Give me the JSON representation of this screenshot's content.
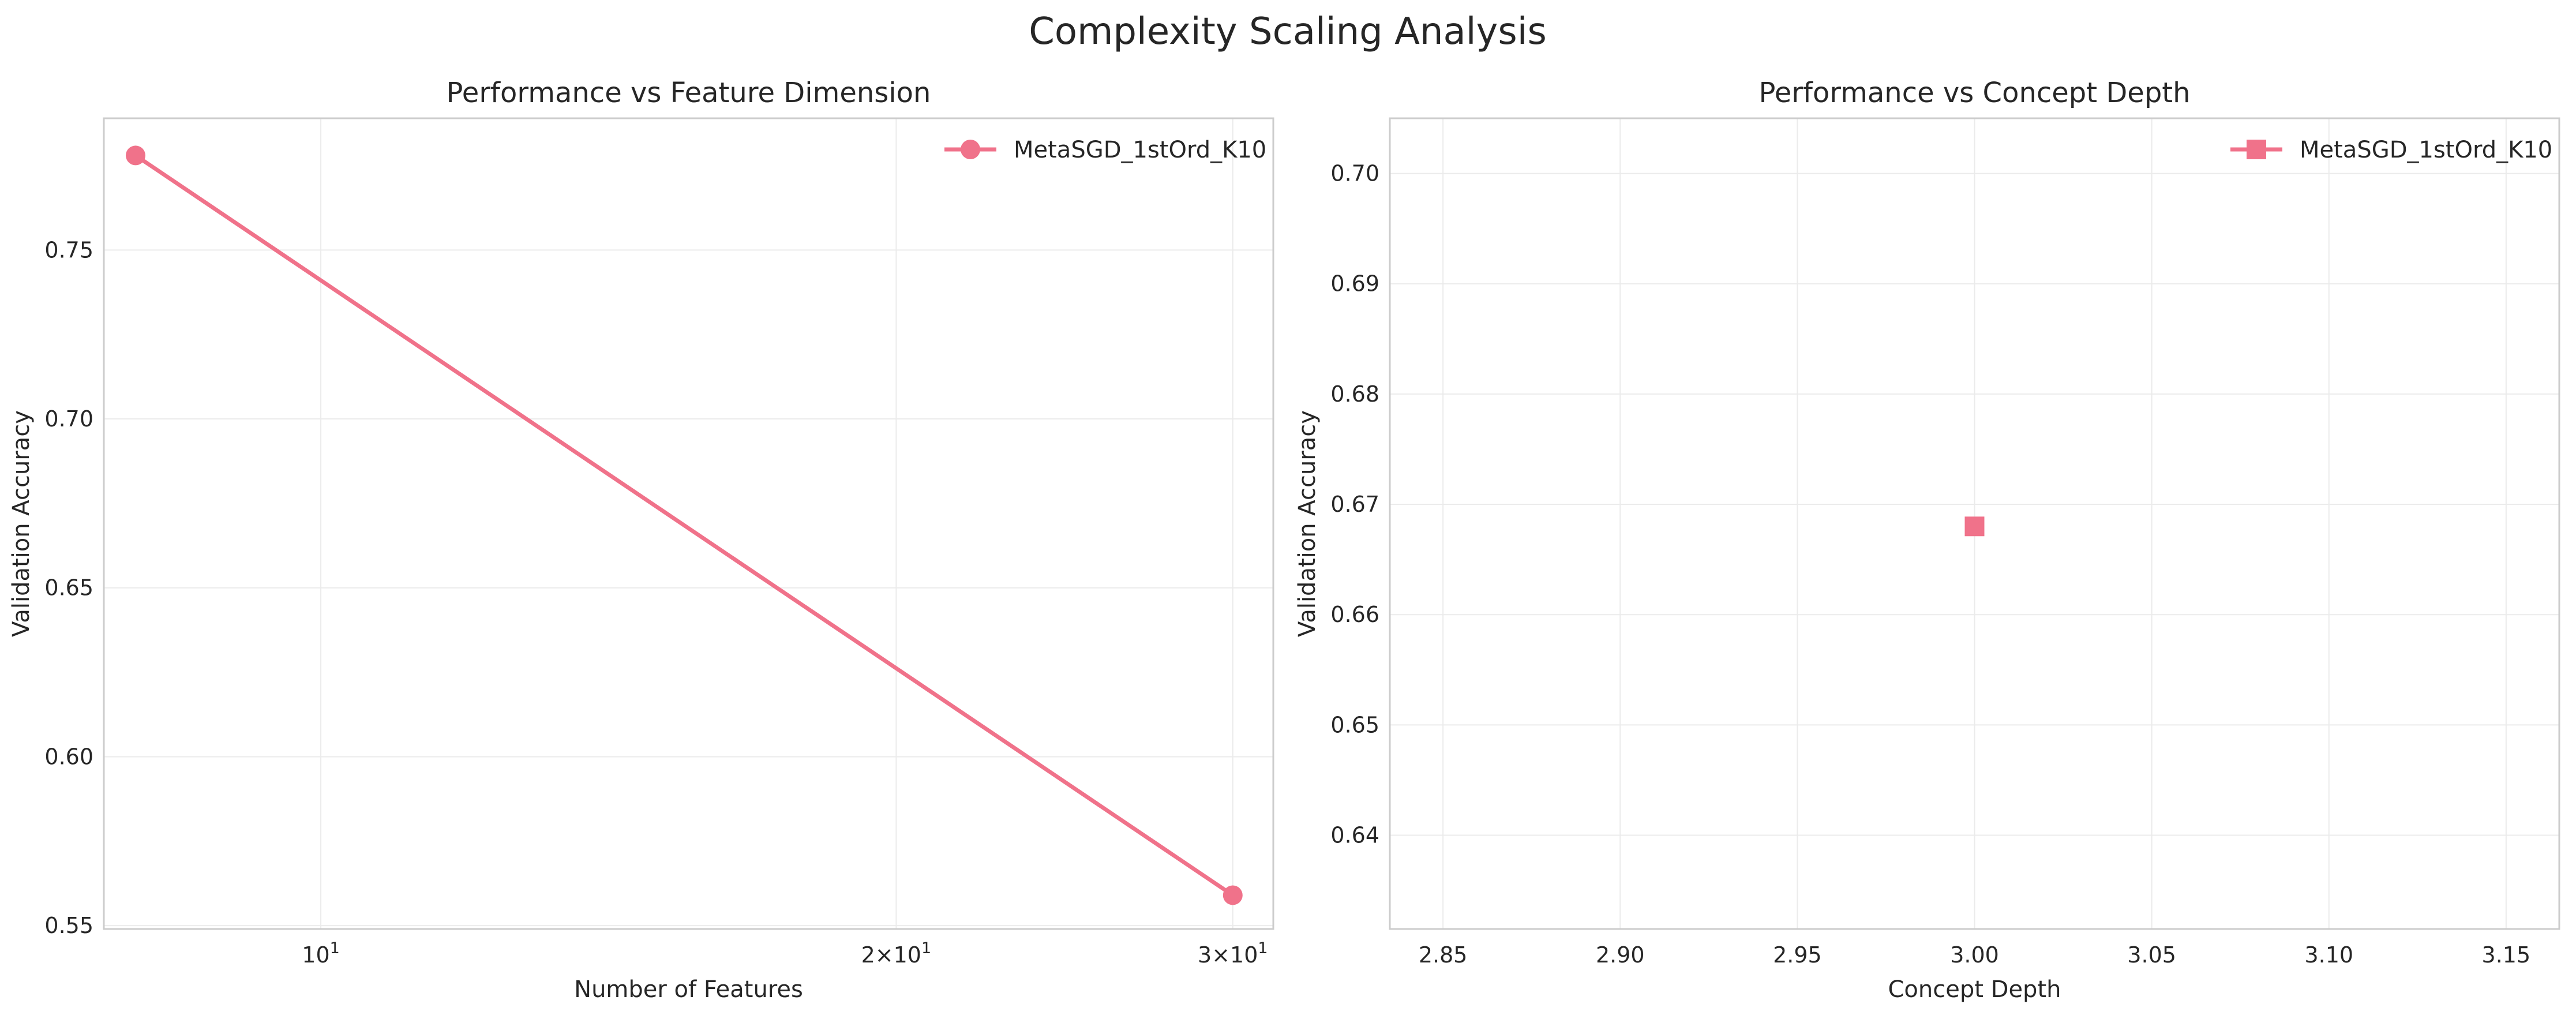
{
  "figure": {
    "title": "Complexity Scaling Analysis"
  },
  "chart_data": [
    {
      "type": "line",
      "title": "Performance vs Feature Dimension",
      "xlabel": "Number of Features",
      "ylabel": "Validation Accuracy",
      "xscale": "log",
      "xlim": [
        7.7,
        31.5
      ],
      "ylim": [
        0.549,
        0.789
      ],
      "xticks": [
        {
          "value": 10,
          "base": "10",
          "exp": "1"
        },
        {
          "value": 20,
          "base": "2×10",
          "exp": "1"
        },
        {
          "value": 30,
          "base": "3×10",
          "exp": "1"
        }
      ],
      "yticks": [
        {
          "value": 0.55,
          "label": "0.55"
        },
        {
          "value": 0.6,
          "label": "0.60"
        },
        {
          "value": 0.65,
          "label": "0.65"
        },
        {
          "value": 0.7,
          "label": "0.70"
        },
        {
          "value": 0.75,
          "label": "0.75"
        }
      ],
      "grid": true,
      "legend_position": "top-right",
      "series": [
        {
          "name": "MetaSGD_1stOrd_K10",
          "marker": "circle",
          "color": "#f0728a",
          "x": [
            8,
            30
          ],
          "y": [
            0.778,
            0.559
          ]
        }
      ]
    },
    {
      "type": "scatter",
      "title": "Performance vs Concept Depth",
      "xlabel": "Concept Depth",
      "ylabel": "Validation Accuracy",
      "xlim": [
        2.835,
        3.165
      ],
      "ylim": [
        0.6315,
        0.705
      ],
      "xticks": [
        {
          "value": 2.85,
          "label": "2.85"
        },
        {
          "value": 2.9,
          "label": "2.90"
        },
        {
          "value": 2.95,
          "label": "2.95"
        },
        {
          "value": 3.0,
          "label": "3.00"
        },
        {
          "value": 3.05,
          "label": "3.05"
        },
        {
          "value": 3.1,
          "label": "3.10"
        },
        {
          "value": 3.15,
          "label": "3.15"
        }
      ],
      "yticks": [
        {
          "value": 0.64,
          "label": "0.64"
        },
        {
          "value": 0.65,
          "label": "0.65"
        },
        {
          "value": 0.66,
          "label": "0.66"
        },
        {
          "value": 0.67,
          "label": "0.67"
        },
        {
          "value": 0.68,
          "label": "0.68"
        },
        {
          "value": 0.69,
          "label": "0.69"
        },
        {
          "value": 0.7,
          "label": "0.70"
        }
      ],
      "grid": true,
      "legend_position": "top-right",
      "series": [
        {
          "name": "MetaSGD_1stOrd_K10",
          "marker": "square",
          "color": "#f0728a",
          "x": [
            3.0
          ],
          "y": [
            0.668
          ]
        }
      ]
    }
  ]
}
